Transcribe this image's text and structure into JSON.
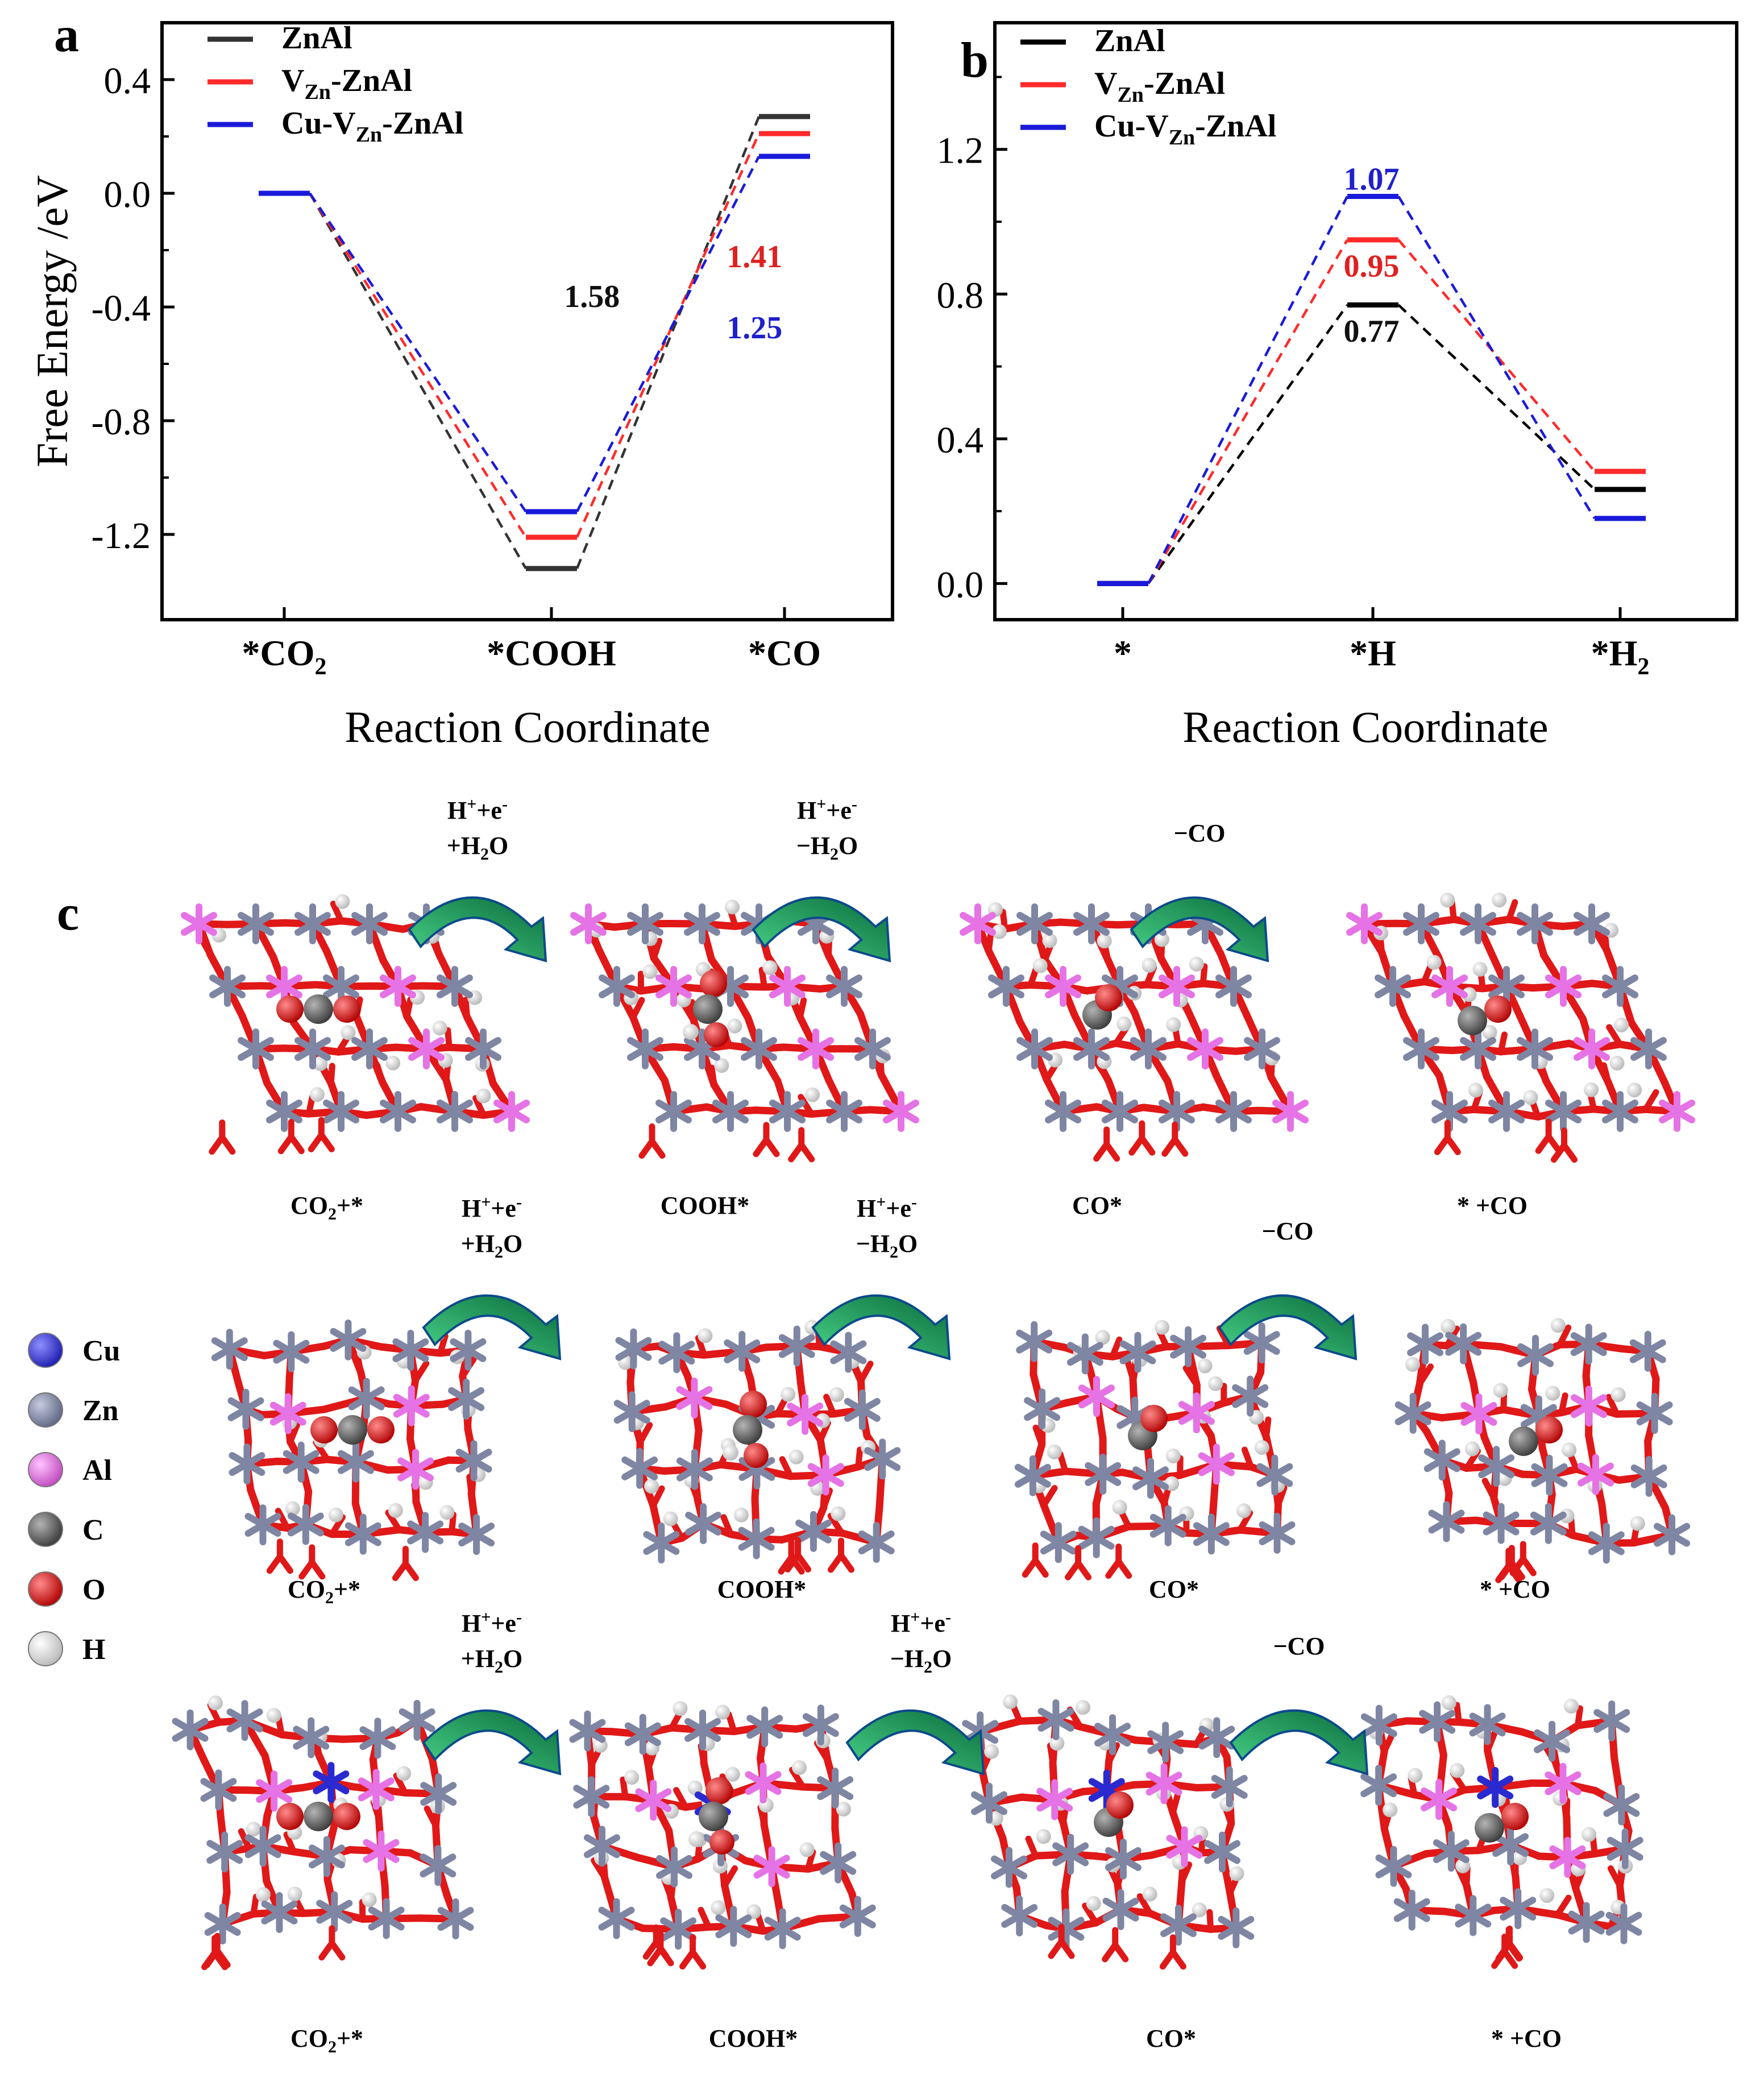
{
  "panel_labels": {
    "a": "a",
    "b": "b",
    "c": "c"
  },
  "chart_data": [
    {
      "id": "a",
      "type": "line",
      "title": "",
      "xlabel": "Reaction Coordinate",
      "ylabel": "Free Energy /eV",
      "ylim": [
        -1.5,
        0.6
      ],
      "yticks": [
        "-1.2",
        "-0.8",
        "-0.4",
        "0.0",
        "0.4"
      ],
      "categories": [
        "*CO",
        "*COOH",
        "*CO"
      ],
      "category_subs": [
        "2",
        "",
        ""
      ],
      "legend_position": "top-left",
      "series": [
        {
          "name": "ZnAl",
          "name_parts": [
            "ZnAl"
          ],
          "color": "#333333",
          "values": [
            0.0,
            -1.32,
            0.27
          ]
        },
        {
          "name": "VZn-ZnAl",
          "name_parts": [
            "V",
            "Zn",
            "-ZnAl"
          ],
          "color": "#ff2a2a",
          "values": [
            0.0,
            -1.21,
            0.21
          ]
        },
        {
          "name": "Cu-VZn-ZnAl",
          "name_parts": [
            "Cu-V",
            "Zn",
            "-ZnAl"
          ],
          "color": "#1a1adb",
          "values": [
            0.0,
            -1.12,
            0.13
          ]
        }
      ],
      "annotations": [
        {
          "text": "1.58",
          "color": "#111111",
          "x": 1.23,
          "y": -0.36
        },
        {
          "text": "1.41",
          "color": "#e02020",
          "x": 1.88,
          "y": -0.22
        },
        {
          "text": "1.25",
          "color": "#2020cc",
          "x": 1.88,
          "y": -0.47
        }
      ]
    },
    {
      "id": "b",
      "type": "line",
      "title": "",
      "xlabel": "Reaction Coordinate",
      "ylabel": "",
      "ylim": [
        -0.1,
        1.55
      ],
      "yticks": [
        "0.0",
        "0.4",
        "0.8",
        "1.2"
      ],
      "categories": [
        "*",
        "*H",
        "*H"
      ],
      "category_subs": [
        "",
        "",
        "2"
      ],
      "legend_position": "top-left",
      "series": [
        {
          "name": "ZnAl",
          "name_parts": [
            "ZnAl"
          ],
          "color": "#000000",
          "values": [
            0.0,
            0.77,
            0.26
          ]
        },
        {
          "name": "VZn-ZnAl",
          "name_parts": [
            "V",
            "Zn",
            "-ZnAl"
          ],
          "color": "#ff2a2a",
          "values": [
            0.0,
            0.95,
            0.31
          ]
        },
        {
          "name": "Cu-VZn-ZnAl",
          "name_parts": [
            "Cu-V",
            "Zn",
            "-ZnAl"
          ],
          "color": "#1a1adb",
          "values": [
            0.0,
            1.07,
            0.18
          ]
        }
      ],
      "annotations": [
        {
          "text": "0.77",
          "color": "#111111",
          "x": 1,
          "y": 0.7
        },
        {
          "text": "0.95",
          "color": "#e02020",
          "x": 1,
          "y": 0.88
        },
        {
          "text": "1.07",
          "color": "#2020cc",
          "x": 1,
          "y": 1.12
        }
      ]
    }
  ],
  "scheme": {
    "step_labels": [
      {
        "line1": "H+e",
        "line1_sup1": "+",
        "line1_sup2": "-",
        "line2": "+H2O"
      },
      {
        "line1": "H+e",
        "line1_sup1": "+",
        "line1_sup2": "-",
        "line2": "−H2O"
      },
      {
        "line1": "−CO"
      }
    ],
    "state_labels": [
      "CO2+*",
      "COOH*",
      "CO*",
      "* +CO"
    ],
    "state_label_parts": [
      [
        "CO",
        "2",
        "+*"
      ],
      [
        "COOH*",
        "",
        ""
      ],
      [
        "CO*",
        "",
        ""
      ],
      [
        "* +CO",
        "",
        ""
      ]
    ],
    "legend": [
      {
        "symbol": "Cu",
        "color": "#3838d8"
      },
      {
        "symbol": "Zn",
        "color": "#7f86a3"
      },
      {
        "symbol": "Al",
        "color": "#e573e5"
      },
      {
        "symbol": "C",
        "color": "#6e6e6e"
      },
      {
        "symbol": "O",
        "color": "#e01818"
      },
      {
        "symbol": "H",
        "color": "#f0f0f0"
      }
    ]
  }
}
